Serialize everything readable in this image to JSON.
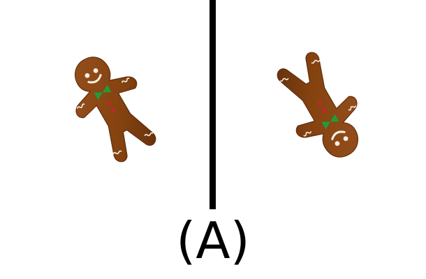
{
  "figure_label": "(A)",
  "panels": [
    {
      "name": "left",
      "icon": "gingerbread-man",
      "expression": "smile"
    },
    {
      "name": "right",
      "icon": "gingerbread-man",
      "expression": "frown"
    }
  ],
  "colors": {
    "cookie": "#8b4513",
    "cookie_dark": "#6e3510",
    "icing": "#f5f0e6",
    "bowtie": "#1e9e3a",
    "buttons": "#c0282e",
    "divider": "#000000"
  }
}
